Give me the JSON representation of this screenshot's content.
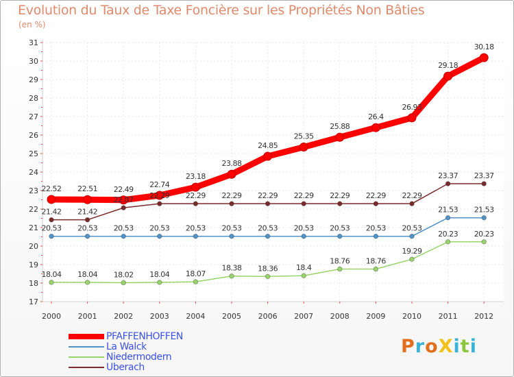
{
  "header": {
    "title": "Evolution du Taux de Taxe Foncière sur les Propriétés Non Bâties",
    "subtitle": "(en %)"
  },
  "logo": {
    "text": "ProXiti",
    "colors": [
      "#e0701e",
      "#3bb3d6",
      "#e0701e",
      "#f2c21a",
      "#3bb3d6",
      "#8cc63e",
      "#3bb3d6"
    ]
  },
  "chart_data": {
    "type": "line",
    "title": "Evolution du Taux de Taxe Foncière sur les Propriétés Non Bâties",
    "subtitle": "(en %)",
    "xlabel": "",
    "ylabel": "",
    "categories": [
      "2000",
      "2001",
      "2002",
      "2003",
      "2004",
      "2005",
      "2006",
      "2007",
      "2008",
      "2009",
      "2010",
      "2011",
      "2012"
    ],
    "y_ticks": [
      "17",
      "18",
      "19",
      "20",
      "21",
      "22",
      "23",
      "24",
      "25",
      "26",
      "27",
      "28",
      "29",
      "30",
      "31"
    ],
    "ylim": [
      17,
      31
    ],
    "grid": true,
    "legend_position": "bottom-left",
    "series": [
      {
        "name": "PFAFFENHOFFEN",
        "color": "#ff0000",
        "values": [
          22.52,
          22.51,
          22.49,
          22.74,
          23.18,
          23.88,
          24.85,
          25.35,
          25.88,
          26.4,
          26.93,
          29.18,
          30.18
        ],
        "labels": [
          "22.52",
          "22.51",
          "22.49",
          "22.74",
          "23.18",
          "23.88",
          "24.85",
          "25.35",
          "25.88",
          "26.4",
          "26.93",
          "29.18",
          "30.18"
        ]
      },
      {
        "name": "La Walck",
        "color": "#4f93c9",
        "values": [
          20.53,
          20.53,
          20.53,
          20.53,
          20.53,
          20.53,
          20.53,
          20.53,
          20.53,
          20.53,
          20.53,
          21.53,
          21.53
        ],
        "labels": [
          "20.53",
          "20.53",
          "20.53",
          "20.53",
          "20.53",
          "20.53",
          "20.53",
          "20.53",
          "20.53",
          "20.53",
          "20.53",
          "21.53",
          "21.53"
        ]
      },
      {
        "name": "Niedermodern",
        "color": "#99d46b",
        "values": [
          18.04,
          18.04,
          18.02,
          18.04,
          18.07,
          18.38,
          18.36,
          18.4,
          18.76,
          18.76,
          19.29,
          20.23,
          20.23
        ],
        "labels": [
          "18.04",
          "18.04",
          "18.02",
          "18.04",
          "18.07",
          "18.38",
          "18.36",
          "18.4",
          "18.76",
          "18.76",
          "19.29",
          "20.23",
          "20.23"
        ]
      },
      {
        "name": "Uberach",
        "color": "#7a2a2a",
        "values": [
          21.42,
          21.42,
          22.07,
          22.29,
          22.29,
          22.29,
          22.29,
          22.29,
          22.29,
          22.29,
          22.29,
          23.37,
          23.37
        ],
        "labels": [
          "21.42",
          "21.42",
          "22.07",
          "22.29",
          "22.29",
          "22.29",
          "22.29",
          "22.29",
          "22.29",
          "22.29",
          "22.29",
          "23.37",
          "23.37"
        ]
      }
    ]
  }
}
